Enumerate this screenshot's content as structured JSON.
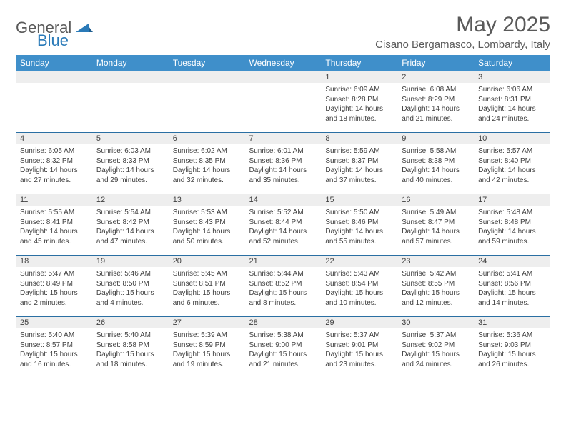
{
  "logo": {
    "text_dark": "General",
    "text_blue": "Blue"
  },
  "title": "May 2025",
  "location": "Cisano Bergamasco, Lombardy, Italy",
  "colors": {
    "header_bg": "#3f8fca",
    "header_text": "#ffffff",
    "daynum_bg": "#eeeeee",
    "row_border": "#2a6fa3",
    "text": "#404040",
    "logo_dark": "#5a5a5a",
    "logo_blue": "#2a7ab8"
  },
  "day_headers": [
    "Sunday",
    "Monday",
    "Tuesday",
    "Wednesday",
    "Thursday",
    "Friday",
    "Saturday"
  ],
  "weeks": [
    [
      null,
      null,
      null,
      null,
      {
        "n": "1",
        "sunrise": "6:09 AM",
        "sunset": "8:28 PM",
        "daylight": "14 hours and 18 minutes."
      },
      {
        "n": "2",
        "sunrise": "6:08 AM",
        "sunset": "8:29 PM",
        "daylight": "14 hours and 21 minutes."
      },
      {
        "n": "3",
        "sunrise": "6:06 AM",
        "sunset": "8:31 PM",
        "daylight": "14 hours and 24 minutes."
      }
    ],
    [
      {
        "n": "4",
        "sunrise": "6:05 AM",
        "sunset": "8:32 PM",
        "daylight": "14 hours and 27 minutes."
      },
      {
        "n": "5",
        "sunrise": "6:03 AM",
        "sunset": "8:33 PM",
        "daylight": "14 hours and 29 minutes."
      },
      {
        "n": "6",
        "sunrise": "6:02 AM",
        "sunset": "8:35 PM",
        "daylight": "14 hours and 32 minutes."
      },
      {
        "n": "7",
        "sunrise": "6:01 AM",
        "sunset": "8:36 PM",
        "daylight": "14 hours and 35 minutes."
      },
      {
        "n": "8",
        "sunrise": "5:59 AM",
        "sunset": "8:37 PM",
        "daylight": "14 hours and 37 minutes."
      },
      {
        "n": "9",
        "sunrise": "5:58 AM",
        "sunset": "8:38 PM",
        "daylight": "14 hours and 40 minutes."
      },
      {
        "n": "10",
        "sunrise": "5:57 AM",
        "sunset": "8:40 PM",
        "daylight": "14 hours and 42 minutes."
      }
    ],
    [
      {
        "n": "11",
        "sunrise": "5:55 AM",
        "sunset": "8:41 PM",
        "daylight": "14 hours and 45 minutes."
      },
      {
        "n": "12",
        "sunrise": "5:54 AM",
        "sunset": "8:42 PM",
        "daylight": "14 hours and 47 minutes."
      },
      {
        "n": "13",
        "sunrise": "5:53 AM",
        "sunset": "8:43 PM",
        "daylight": "14 hours and 50 minutes."
      },
      {
        "n": "14",
        "sunrise": "5:52 AM",
        "sunset": "8:44 PM",
        "daylight": "14 hours and 52 minutes."
      },
      {
        "n": "15",
        "sunrise": "5:50 AM",
        "sunset": "8:46 PM",
        "daylight": "14 hours and 55 minutes."
      },
      {
        "n": "16",
        "sunrise": "5:49 AM",
        "sunset": "8:47 PM",
        "daylight": "14 hours and 57 minutes."
      },
      {
        "n": "17",
        "sunrise": "5:48 AM",
        "sunset": "8:48 PM",
        "daylight": "14 hours and 59 minutes."
      }
    ],
    [
      {
        "n": "18",
        "sunrise": "5:47 AM",
        "sunset": "8:49 PM",
        "daylight": "15 hours and 2 minutes."
      },
      {
        "n": "19",
        "sunrise": "5:46 AM",
        "sunset": "8:50 PM",
        "daylight": "15 hours and 4 minutes."
      },
      {
        "n": "20",
        "sunrise": "5:45 AM",
        "sunset": "8:51 PM",
        "daylight": "15 hours and 6 minutes."
      },
      {
        "n": "21",
        "sunrise": "5:44 AM",
        "sunset": "8:52 PM",
        "daylight": "15 hours and 8 minutes."
      },
      {
        "n": "22",
        "sunrise": "5:43 AM",
        "sunset": "8:54 PM",
        "daylight": "15 hours and 10 minutes."
      },
      {
        "n": "23",
        "sunrise": "5:42 AM",
        "sunset": "8:55 PM",
        "daylight": "15 hours and 12 minutes."
      },
      {
        "n": "24",
        "sunrise": "5:41 AM",
        "sunset": "8:56 PM",
        "daylight": "15 hours and 14 minutes."
      }
    ],
    [
      {
        "n": "25",
        "sunrise": "5:40 AM",
        "sunset": "8:57 PM",
        "daylight": "15 hours and 16 minutes."
      },
      {
        "n": "26",
        "sunrise": "5:40 AM",
        "sunset": "8:58 PM",
        "daylight": "15 hours and 18 minutes."
      },
      {
        "n": "27",
        "sunrise": "5:39 AM",
        "sunset": "8:59 PM",
        "daylight": "15 hours and 19 minutes."
      },
      {
        "n": "28",
        "sunrise": "5:38 AM",
        "sunset": "9:00 PM",
        "daylight": "15 hours and 21 minutes."
      },
      {
        "n": "29",
        "sunrise": "5:37 AM",
        "sunset": "9:01 PM",
        "daylight": "15 hours and 23 minutes."
      },
      {
        "n": "30",
        "sunrise": "5:37 AM",
        "sunset": "9:02 PM",
        "daylight": "15 hours and 24 minutes."
      },
      {
        "n": "31",
        "sunrise": "5:36 AM",
        "sunset": "9:03 PM",
        "daylight": "15 hours and 26 minutes."
      }
    ]
  ],
  "labels": {
    "sunrise": "Sunrise: ",
    "sunset": "Sunset: ",
    "daylight": "Daylight: "
  }
}
